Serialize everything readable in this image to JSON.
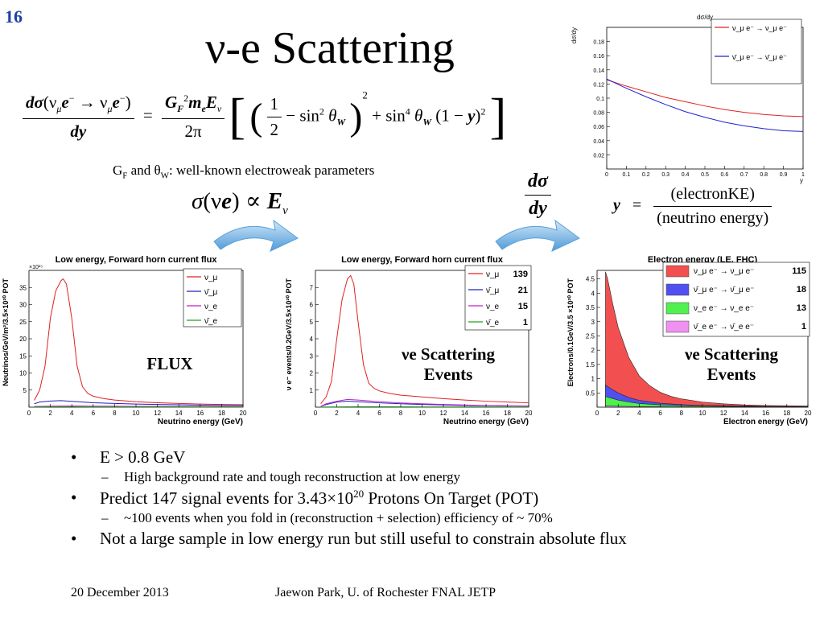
{
  "slide_number": "16",
  "title": "ν-e Scattering",
  "formula": {
    "lhs_num_d": "dσ",
    "lhs_num_paren": "(ν",
    "lhs_num_sub_mu": "μ",
    "lhs_num_e1": "e",
    "lhs_num_sup_minus1": "−",
    "lhs_num_arrow": " → ν",
    "lhs_num_sub_mu2": "μ",
    "lhs_num_e2": "e",
    "lhs_num_sup_minus2": "−",
    "lhs_num_close": ")",
    "lhs_den": "dy",
    "eq": "=",
    "rhs_num_G": "G",
    "rhs_num_G_sub": "F",
    "rhs_num_G_sup": "2",
    "rhs_num_m": "m",
    "rhs_num_m_sub": "e",
    "rhs_num_E": "E",
    "rhs_num_E_sub": "ν",
    "rhs_den": "2π",
    "half_num": "1",
    "half_den": "2",
    "minus_sin": "− sin",
    "sin2_sup": "2",
    "theta": "θ",
    "theta_sub": "W",
    "sq": "2",
    "plus_sin": "+ sin",
    "sin4_sup": "4",
    "one_minus_y_open": "(1 −",
    "y": "y",
    "one_minus_y_close": ")",
    "last_sq": "2"
  },
  "params_line": {
    "G": "G",
    "G_sub": "F",
    "and": " and θ",
    "W_sub": "W",
    "rest": ": well-known electroweak parameters"
  },
  "sigma_rel": {
    "sigma": "σ",
    "paren_open": "(ν",
    "e": "e",
    "paren_close": ")",
    "prop": " ∝ ",
    "E": "E",
    "E_sub": "ν"
  },
  "dsigma_dy": {
    "num": "dσ",
    "den": "dy"
  },
  "y_def": {
    "y": "y",
    "eq": "=",
    "num": "(electronKE)",
    "den": "(neutrino energy)"
  },
  "chart_data": [
    {
      "type": "line",
      "title": "dσ/dy",
      "xlabel": "y",
      "ylabel": "dσ/dy",
      "xlim": [
        0,
        1
      ],
      "ylim": [
        0,
        0.2
      ],
      "xticks": [
        "0",
        "0.1",
        "0.2",
        "0.3",
        "0.4",
        "0.5",
        "0.6",
        "0.7",
        "0.8",
        "0.9",
        "1"
      ],
      "yticks": [
        "0.02",
        "0.04",
        "0.06",
        "0.08",
        "0.1",
        "0.12",
        "0.14",
        "0.16",
        "0.18"
      ],
      "legend": "top-right",
      "series": [
        {
          "name": "ν_μ e⁻ → ν_μ e⁻",
          "color": "#e02020",
          "x": [
            0,
            0.1,
            0.2,
            0.3,
            0.4,
            0.5,
            0.6,
            0.7,
            0.8,
            0.9,
            1
          ],
          "y": [
            0.126,
            0.117,
            0.109,
            0.101,
            0.095,
            0.089,
            0.084,
            0.08,
            0.077,
            0.075,
            0.074
          ]
        },
        {
          "name": "ν̄_μ e⁻ → ν̄_μ e⁻",
          "color": "#2020d0",
          "x": [
            0,
            0.1,
            0.2,
            0.3,
            0.4,
            0.5,
            0.6,
            0.7,
            0.8,
            0.9,
            1
          ],
          "y": [
            0.127,
            0.114,
            0.102,
            0.091,
            0.081,
            0.073,
            0.066,
            0.061,
            0.057,
            0.054,
            0.053
          ]
        }
      ]
    },
    {
      "type": "line",
      "title": "Low energy, Forward horn current flux",
      "xlabel": "Neutrino energy (GeV)",
      "ylabel": "Neutrinos/GeV/m²/3.5×10²⁰ POT",
      "exponent": "×10¹⁵",
      "xlim": [
        0,
        20
      ],
      "ylim": [
        0,
        40
      ],
      "xticks": [
        "0",
        "2",
        "4",
        "6",
        "8",
        "10",
        "12",
        "14",
        "16",
        "18",
        "20"
      ],
      "yticks": [
        "5",
        "10",
        "15",
        "20",
        "25",
        "30",
        "35"
      ],
      "legend": "top-right",
      "overlay": "FLUX",
      "series": [
        {
          "name": "ν_μ",
          "color": "#e02020",
          "x": [
            0.5,
            1,
            1.5,
            2,
            2.5,
            3,
            3.2,
            3.5,
            4,
            4.5,
            5,
            5.5,
            6,
            7,
            8,
            10,
            12,
            14,
            16,
            18,
            20
          ],
          "y": [
            2,
            5,
            12,
            26,
            34,
            37,
            37.5,
            36,
            26,
            12,
            6,
            4,
            3.2,
            2.5,
            2.1,
            1.6,
            1.3,
            1.1,
            0.9,
            0.8,
            0.7
          ]
        },
        {
          "name": "ν̄_μ",
          "color": "#2020c0",
          "x": [
            0.5,
            1,
            2,
            3,
            4,
            6,
            8,
            10,
            12,
            14,
            16,
            18,
            20
          ],
          "y": [
            1,
            1.5,
            1.8,
            1.9,
            1.7,
            1.3,
            1.1,
            0.9,
            0.8,
            0.7,
            0.6,
            0.5,
            0.5
          ]
        },
        {
          "name": "ν_e",
          "color": "#c020c0",
          "x": [
            0.5,
            2,
            4,
            6,
            10,
            15,
            20
          ],
          "y": [
            0.2,
            0.3,
            0.35,
            0.3,
            0.25,
            0.2,
            0.15
          ]
        },
        {
          "name": "ν̄_e",
          "color": "#20a020",
          "x": [
            0.5,
            2,
            4,
            6,
            10,
            15,
            20
          ],
          "y": [
            0.1,
            0.12,
            0.12,
            0.1,
            0.08,
            0.06,
            0.05
          ]
        }
      ]
    },
    {
      "type": "line",
      "title": "Low energy, Forward horn current flux",
      "xlabel": "Neutrino energy (GeV)",
      "ylabel": "ν e⁻ events/0.2GeV/3.5×10²⁰ POT",
      "xlim": [
        0,
        20
      ],
      "ylim": [
        0,
        8
      ],
      "xticks": [
        "0",
        "2",
        "4",
        "6",
        "8",
        "10",
        "12",
        "14",
        "16",
        "18",
        "20"
      ],
      "yticks": [
        "1",
        "2",
        "3",
        "4",
        "5",
        "6",
        "7"
      ],
      "legend": "top-right",
      "overlay": "νe Scattering Events",
      "series": [
        {
          "name": "ν_μ",
          "count": "139",
          "color": "#e02020",
          "x": [
            0.5,
            1,
            1.5,
            2,
            2.5,
            3,
            3.3,
            3.6,
            4,
            4.5,
            5,
            5.5,
            6,
            7,
            8,
            10,
            12,
            14,
            16,
            18,
            20
          ],
          "y": [
            0.2,
            0.6,
            1.5,
            4,
            6.3,
            7.5,
            7.7,
            7.2,
            5,
            2.5,
            1.4,
            1.1,
            0.95,
            0.8,
            0.7,
            0.6,
            0.5,
            0.42,
            0.35,
            0.3,
            0.25
          ]
        },
        {
          "name": "ν̄_μ",
          "count": "21",
          "color": "#2020c0",
          "x": [
            0.5,
            1,
            2,
            3,
            4,
            6,
            8,
            10,
            12,
            14,
            16,
            18,
            20
          ],
          "y": [
            0.05,
            0.15,
            0.3,
            0.35,
            0.32,
            0.25,
            0.2,
            0.16,
            0.13,
            0.1,
            0.09,
            0.07,
            0.06
          ]
        },
        {
          "name": "ν_e",
          "count": "15",
          "color": "#c020c0",
          "x": [
            0.5,
            1,
            2,
            3,
            4,
            6,
            8,
            10,
            12,
            14,
            16,
            18,
            20
          ],
          "y": [
            0.05,
            0.2,
            0.35,
            0.45,
            0.42,
            0.32,
            0.25,
            0.2,
            0.16,
            0.13,
            0.1,
            0.08,
            0.07
          ]
        },
        {
          "name": "ν̄_e",
          "count": "1",
          "color": "#20a020",
          "x": [
            0.5,
            2,
            4,
            6,
            10,
            15,
            20
          ],
          "y": [
            0.01,
            0.02,
            0.03,
            0.03,
            0.02,
            0.02,
            0.01
          ]
        }
      ]
    },
    {
      "type": "area",
      "title": "Electron energy (LE, FHC)",
      "xlabel": "Electron energy (GeV)",
      "ylabel": "Electrons/0.1GeV/3.5 ×10²⁰ POT",
      "xlim": [
        0,
        20
      ],
      "ylim": [
        0,
        4.8
      ],
      "xticks": [
        "0",
        "2",
        "4",
        "6",
        "8",
        "10",
        "12",
        "14",
        "16",
        "18",
        "20"
      ],
      "yticks": [
        "0.5",
        "1",
        "1.5",
        "2",
        "2.5",
        "3",
        "3.5",
        "4",
        "4.5"
      ],
      "legend": "top-right",
      "overlay": "νe Scattering Events",
      "series": [
        {
          "name": "ν_μ e⁻ → ν_μ e⁻",
          "count": "115",
          "color": "#f25050",
          "x": [
            0.8,
            1,
            1.5,
            2,
            3,
            4,
            5,
            6,
            7,
            8,
            10,
            12,
            14,
            16,
            18,
            20
          ],
          "y": [
            4.75,
            4.5,
            3.6,
            2.8,
            1.75,
            1.1,
            0.75,
            0.52,
            0.38,
            0.29,
            0.18,
            0.12,
            0.08,
            0.06,
            0.05,
            0.04
          ]
        },
        {
          "name": "ν̄_μ e⁻ → ν̄_μ e⁻",
          "count": "18",
          "color": "#5050f0",
          "x": [
            0.8,
            1,
            2,
            3,
            4,
            6,
            8,
            10,
            12,
            14,
            16,
            18,
            20
          ],
          "y": [
            0.78,
            0.72,
            0.5,
            0.34,
            0.24,
            0.14,
            0.09,
            0.06,
            0.05,
            0.04,
            0.03,
            0.02,
            0.02
          ]
        },
        {
          "name": "ν_e e⁻ → ν_e e⁻",
          "count": "13",
          "color": "#50f050",
          "x": [
            0.8,
            1,
            2,
            3,
            4,
            6,
            8,
            10,
            12,
            14,
            16,
            18,
            20
          ],
          "y": [
            0.38,
            0.35,
            0.25,
            0.18,
            0.13,
            0.08,
            0.05,
            0.04,
            0.03,
            0.02,
            0.02,
            0.01,
            0.01
          ]
        },
        {
          "name": "ν̄_e e⁻ → ν̄_e e⁻",
          "count": "1",
          "color": "#f090f0",
          "x": [
            0.8,
            2,
            4,
            8,
            12,
            20
          ],
          "y": [
            0.04,
            0.03,
            0.02,
            0.01,
            0.01,
            0.005
          ]
        }
      ]
    }
  ],
  "bullets": [
    {
      "text": "E > 0.8 GeV",
      "sub": [
        "High background rate and tough reconstruction at low energy"
      ]
    },
    {
      "text_a": "Predict 147 signal events for 3.43×10",
      "sup": "20",
      "text_b": " Protons On Target (POT)",
      "sub": [
        "~100 events when you fold in (reconstruction + selection) efficiency of ~ 70%"
      ]
    },
    {
      "text": "Not a large sample in low energy run but still useful to constrain absolute flux",
      "sub": []
    }
  ],
  "bullet_marker": "•",
  "sub_marker": "–",
  "footer": {
    "date": "20 December 2013",
    "author": "Jaewon Park, U. of Rochester  FNAL JETP"
  }
}
